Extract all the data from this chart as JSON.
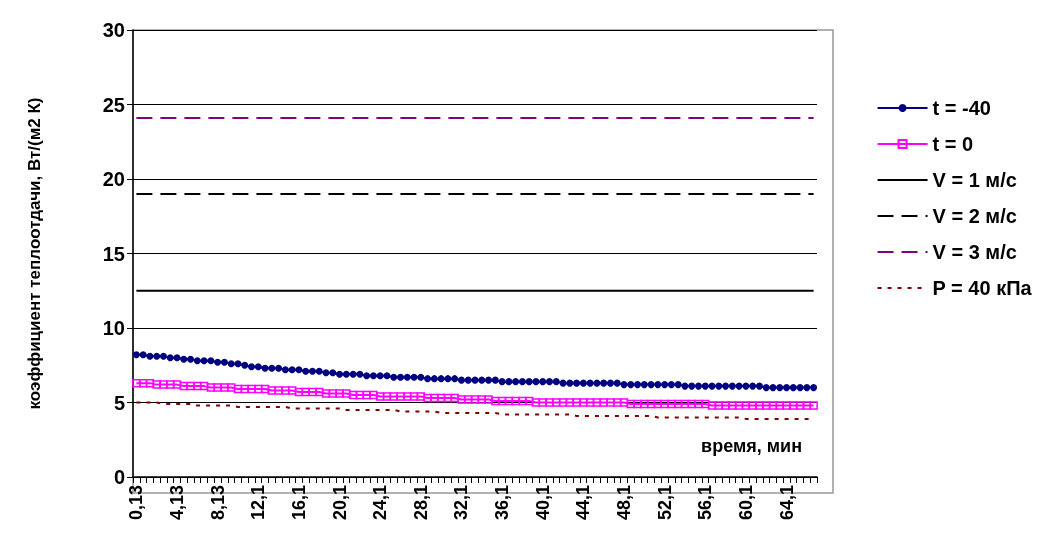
{
  "chart_data": {
    "type": "line",
    "ylabel": "коэффициент теплоотдачи, Вт/(м2 К)",
    "xlabel": "время, мин",
    "ylim": [
      0,
      30
    ],
    "yticks": [
      0,
      5,
      10,
      15,
      20,
      25,
      30
    ],
    "grid": "y",
    "legend": "right",
    "categories": [
      "0,13",
      null,
      null,
      null,
      null,
      null,
      "4,13",
      null,
      null,
      null,
      null,
      null,
      "8,13",
      null,
      null,
      null,
      null,
      null,
      "12,1",
      null,
      null,
      null,
      null,
      null,
      "16,1",
      null,
      null,
      null,
      null,
      null,
      "20,1",
      null,
      null,
      null,
      null,
      null,
      "24,1",
      null,
      null,
      null,
      null,
      null,
      "28,1",
      null,
      null,
      null,
      null,
      null,
      "32,1",
      null,
      null,
      null,
      null,
      null,
      "36,1",
      null,
      null,
      null,
      null,
      null,
      "40,1",
      null,
      null,
      null,
      null,
      null,
      "44,1",
      null,
      null,
      null,
      null,
      null,
      "48,1",
      null,
      null,
      null,
      null,
      null,
      "52,1",
      null,
      null,
      null,
      null,
      null,
      "56,1",
      null,
      null,
      null,
      null,
      null,
      "60,1",
      null,
      null,
      null,
      null,
      null,
      "64,1",
      null,
      null,
      null,
      null
    ],
    "series": [
      {
        "name": "t = -40",
        "color": "#000080",
        "marker": "circle",
        "line_style": "solid",
        "values": [
          8.2,
          8.2,
          8.1,
          8.1,
          8.1,
          8.0,
          8.0,
          7.9,
          7.9,
          7.8,
          7.8,
          7.8,
          7.7,
          7.7,
          7.6,
          7.6,
          7.5,
          7.4,
          7.4,
          7.3,
          7.3,
          7.3,
          7.2,
          7.2,
          7.2,
          7.1,
          7.1,
          7.1,
          7.0,
          7.0,
          6.9,
          6.9,
          6.9,
          6.9,
          6.8,
          6.8,
          6.8,
          6.8,
          6.7,
          6.7,
          6.7,
          6.7,
          6.7,
          6.6,
          6.6,
          6.6,
          6.6,
          6.6,
          6.5,
          6.5,
          6.5,
          6.5,
          6.5,
          6.5,
          6.4,
          6.4,
          6.4,
          6.4,
          6.4,
          6.4,
          6.4,
          6.4,
          6.4,
          6.3,
          6.3,
          6.3,
          6.3,
          6.3,
          6.3,
          6.3,
          6.3,
          6.3,
          6.2,
          6.2,
          6.2,
          6.2,
          6.2,
          6.2,
          6.2,
          6.2,
          6.2,
          6.1,
          6.1,
          6.1,
          6.1,
          6.1,
          6.1,
          6.1,
          6.1,
          6.1,
          6.1,
          6.1,
          6.1,
          6.0,
          6.0,
          6.0,
          6.0,
          6.0,
          6.0,
          6.0,
          6.0
        ]
      },
      {
        "name": "t = 0",
        "color": "#ff00ff",
        "marker": "square",
        "line_style": "solid",
        "values": [
          6.3,
          6.3,
          6.3,
          6.2,
          6.2,
          6.2,
          6.2,
          6.1,
          6.1,
          6.1,
          6.1,
          6.0,
          6.0,
          6.0,
          6.0,
          5.9,
          5.9,
          5.9,
          5.9,
          5.9,
          5.8,
          5.8,
          5.8,
          5.8,
          5.7,
          5.7,
          5.7,
          5.7,
          5.6,
          5.6,
          5.6,
          5.6,
          5.5,
          5.5,
          5.5,
          5.5,
          5.4,
          5.4,
          5.4,
          5.4,
          5.4,
          5.4,
          5.4,
          5.3,
          5.3,
          5.3,
          5.3,
          5.3,
          5.2,
          5.2,
          5.2,
          5.2,
          5.2,
          5.1,
          5.1,
          5.1,
          5.1,
          5.1,
          5.1,
          5.0,
          5.0,
          5.0,
          5.0,
          5.0,
          5.0,
          5.0,
          5.0,
          5.0,
          5.0,
          5.0,
          5.0,
          5.0,
          5.0,
          4.9,
          4.9,
          4.9,
          4.9,
          4.9,
          4.9,
          4.9,
          4.9,
          4.9,
          4.9,
          4.9,
          4.9,
          4.8,
          4.8,
          4.8,
          4.8,
          4.8,
          4.8,
          4.8,
          4.8,
          4.8,
          4.8,
          4.8,
          4.8,
          4.8,
          4.8,
          4.8,
          4.8
        ]
      },
      {
        "name": "V = 1 м/с",
        "color": "#000000",
        "marker": "none",
        "line_style": "solid",
        "values": [
          12.5,
          12.5,
          12.5,
          12.5,
          12.5,
          12.5,
          12.5,
          12.5,
          12.5,
          12.5,
          12.5,
          12.5,
          12.5,
          12.5,
          12.5,
          12.5,
          12.5,
          12.5,
          12.5,
          12.5,
          12.5,
          12.5,
          12.5,
          12.5,
          12.5,
          12.5,
          12.5,
          12.5,
          12.5,
          12.5,
          12.5,
          12.5,
          12.5,
          12.5,
          12.5,
          12.5,
          12.5,
          12.5,
          12.5,
          12.5,
          12.5,
          12.5,
          12.5,
          12.5,
          12.5,
          12.5,
          12.5,
          12.5,
          12.5,
          12.5,
          12.5,
          12.5,
          12.5,
          12.5,
          12.5,
          12.5,
          12.5,
          12.5,
          12.5,
          12.5,
          12.5,
          12.5,
          12.5,
          12.5,
          12.5,
          12.5,
          12.5,
          12.5,
          12.5,
          12.5,
          12.5,
          12.5,
          12.5,
          12.5,
          12.5,
          12.5,
          12.5,
          12.5,
          12.5,
          12.5,
          12.5,
          12.5,
          12.5,
          12.5,
          12.5,
          12.5,
          12.5,
          12.5,
          12.5,
          12.5,
          12.5,
          12.5,
          12.5,
          12.5,
          12.5,
          12.5,
          12.5,
          12.5,
          12.5,
          12.5,
          12.5
        ]
      },
      {
        "name": "V = 2 м/с",
        "color": "#000000",
        "marker": "none",
        "line_style": "dashed",
        "values": [
          19,
          19,
          19,
          19,
          19,
          19,
          19,
          19,
          19,
          19,
          19,
          19,
          19,
          19,
          19,
          19,
          19,
          19,
          19,
          19,
          19,
          19,
          19,
          19,
          19,
          19,
          19,
          19,
          19,
          19,
          19,
          19,
          19,
          19,
          19,
          19,
          19,
          19,
          19,
          19,
          19,
          19,
          19,
          19,
          19,
          19,
          19,
          19,
          19,
          19,
          19,
          19,
          19,
          19,
          19,
          19,
          19,
          19,
          19,
          19,
          19,
          19,
          19,
          19,
          19,
          19,
          19,
          19,
          19,
          19,
          19,
          19,
          19,
          19,
          19,
          19,
          19,
          19,
          19,
          19,
          19,
          19,
          19,
          19,
          19,
          19,
          19,
          19,
          19,
          19,
          19,
          19,
          19,
          19,
          19,
          19,
          19,
          19,
          19,
          19,
          19
        ]
      },
      {
        "name": "V = 3 м/с",
        "color": "#800080",
        "marker": "none",
        "line_style": "dashed",
        "values": [
          24.1,
          24.1,
          24.1,
          24.1,
          24.1,
          24.1,
          24.1,
          24.1,
          24.1,
          24.1,
          24.1,
          24.1,
          24.1,
          24.1,
          24.1,
          24.1,
          24.1,
          24.1,
          24.1,
          24.1,
          24.1,
          24.1,
          24.1,
          24.1,
          24.1,
          24.1,
          24.1,
          24.1,
          24.1,
          24.1,
          24.1,
          24.1,
          24.1,
          24.1,
          24.1,
          24.1,
          24.1,
          24.1,
          24.1,
          24.1,
          24.1,
          24.1,
          24.1,
          24.1,
          24.1,
          24.1,
          24.1,
          24.1,
          24.1,
          24.1,
          24.1,
          24.1,
          24.1,
          24.1,
          24.1,
          24.1,
          24.1,
          24.1,
          24.1,
          24.1,
          24.1,
          24.1,
          24.1,
          24.1,
          24.1,
          24.1,
          24.1,
          24.1,
          24.1,
          24.1,
          24.1,
          24.1,
          24.1,
          24.1,
          24.1,
          24.1,
          24.1,
          24.1,
          24.1,
          24.1,
          24.1,
          24.1,
          24.1,
          24.1,
          24.1,
          24.1,
          24.1,
          24.1,
          24.1,
          24.1,
          24.1,
          24.1,
          24.1,
          24.1,
          24.1,
          24.1,
          24.1,
          24.1,
          24.1,
          24.1,
          24.1
        ]
      },
      {
        "name": "P = 40 кПа",
        "color": "#800000",
        "marker": "none",
        "line_style": "dotted",
        "values": [
          5.0,
          5.0,
          5.0,
          5.0,
          4.9,
          4.9,
          4.9,
          4.9,
          4.9,
          4.8,
          4.8,
          4.8,
          4.8,
          4.8,
          4.8,
          4.7,
          4.7,
          4.7,
          4.7,
          4.7,
          4.7,
          4.7,
          4.7,
          4.6,
          4.6,
          4.6,
          4.6,
          4.6,
          4.6,
          4.6,
          4.6,
          4.5,
          4.5,
          4.5,
          4.5,
          4.5,
          4.5,
          4.5,
          4.5,
          4.4,
          4.4,
          4.4,
          4.4,
          4.4,
          4.4,
          4.3,
          4.3,
          4.3,
          4.3,
          4.3,
          4.3,
          4.3,
          4.3,
          4.3,
          4.2,
          4.2,
          4.2,
          4.2,
          4.2,
          4.2,
          4.2,
          4.2,
          4.2,
          4.2,
          4.2,
          4.1,
          4.1,
          4.1,
          4.1,
          4.1,
          4.1,
          4.1,
          4.1,
          4.1,
          4.1,
          4.1,
          4.1,
          4.0,
          4.0,
          4.0,
          4.0,
          4.0,
          4.0,
          4.0,
          4.0,
          4.0,
          4.0,
          4.0,
          4.0,
          4.0,
          3.9,
          3.9,
          3.9,
          3.9,
          3.9,
          3.9,
          3.9,
          3.9,
          3.9,
          3.9,
          3.9
        ]
      }
    ]
  }
}
